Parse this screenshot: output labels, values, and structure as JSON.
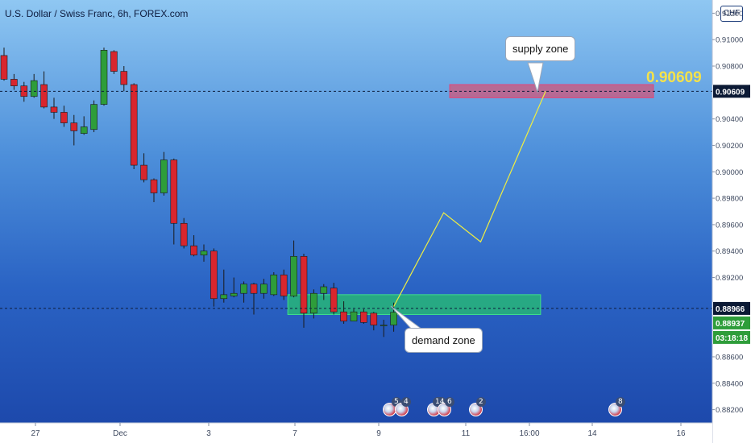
{
  "header": {
    "symbol_title": "U.S. Dollar / Swiss Franc, 6h, FOREX.com",
    "currency_label": "CHF"
  },
  "annotations": {
    "supply_label": "supply zone",
    "demand_label": "demand zone",
    "target_price": "0.90609"
  },
  "price_axis": {
    "ticks": [
      "0.91200",
      "0.91000",
      "0.90800",
      "0.90400",
      "0.90200",
      "0.90000",
      "0.89800",
      "0.89600",
      "0.89400",
      "0.89200",
      "0.88600",
      "0.88400",
      "0.88200"
    ],
    "target_tag": "0.90609",
    "current_tag": "0.88966",
    "last_tag": "0.88937",
    "countdown": "03:18:18"
  },
  "time_axis": {
    "labels": [
      "27",
      "Dec",
      "3",
      "7",
      "9",
      "11",
      "16:00",
      "14",
      "16"
    ]
  },
  "colors": {
    "up": "#2e9d3a",
    "down": "#d8262e",
    "supply_fill": "#d2557a",
    "demand_fill": "#27c26e",
    "projection": "#f0ee40",
    "axis_bg": "#ffffff"
  },
  "events": [
    {
      "count": "5"
    },
    {
      "count": "4"
    },
    {
      "count": "14"
    },
    {
      "count": "6"
    },
    {
      "count": "2"
    },
    {
      "count": "8"
    }
  ],
  "chart_data": {
    "type": "candlestick",
    "timeframe": "6h",
    "ylim": [
      0.881,
      0.913
    ],
    "candles": [
      {
        "t": 0,
        "o": 0.9088,
        "h": 0.9094,
        "l": 0.9069,
        "c": 0.907
      },
      {
        "t": 1,
        "o": 0.907,
        "h": 0.9074,
        "l": 0.9062,
        "c": 0.9065
      },
      {
        "t": 2,
        "o": 0.9065,
        "h": 0.9068,
        "l": 0.9053,
        "c": 0.9057
      },
      {
        "t": 3,
        "o": 0.9057,
        "h": 0.9074,
        "l": 0.9056,
        "c": 0.9069
      },
      {
        "t": 4,
        "o": 0.9066,
        "h": 0.9076,
        "l": 0.9048,
        "c": 0.9049
      },
      {
        "t": 5,
        "o": 0.9049,
        "h": 0.9056,
        "l": 0.904,
        "c": 0.9045
      },
      {
        "t": 6,
        "o": 0.9045,
        "h": 0.905,
        "l": 0.9034,
        "c": 0.9037
      },
      {
        "t": 7,
        "o": 0.9037,
        "h": 0.9043,
        "l": 0.902,
        "c": 0.9031
      },
      {
        "t": 8,
        "o": 0.9029,
        "h": 0.9042,
        "l": 0.9028,
        "c": 0.9034
      },
      {
        "t": 9,
        "o": 0.9032,
        "h": 0.9054,
        "l": 0.903,
        "c": 0.9051
      },
      {
        "t": 10,
        "o": 0.9051,
        "h": 0.9094,
        "l": 0.905,
        "c": 0.9092
      },
      {
        "t": 11,
        "o": 0.9091,
        "h": 0.9092,
        "l": 0.9074,
        "c": 0.9076
      },
      {
        "t": 12,
        "o": 0.9076,
        "h": 0.908,
        "l": 0.9061,
        "c": 0.9066
      },
      {
        "t": 13,
        "o": 0.9066,
        "h": 0.9067,
        "l": 0.9002,
        "c": 0.9005
      },
      {
        "t": 14,
        "o": 0.9005,
        "h": 0.9014,
        "l": 0.8992,
        "c": 0.8994
      },
      {
        "t": 15,
        "o": 0.8994,
        "h": 0.8995,
        "l": 0.8977,
        "c": 0.8984
      },
      {
        "t": 16,
        "o": 0.8984,
        "h": 0.9015,
        "l": 0.8982,
        "c": 0.9009
      },
      {
        "t": 17,
        "o": 0.9009,
        "h": 0.901,
        "l": 0.8945,
        "c": 0.8961
      },
      {
        "t": 18,
        "o": 0.8961,
        "h": 0.8965,
        "l": 0.8942,
        "c": 0.8944
      },
      {
        "t": 19,
        "o": 0.8944,
        "h": 0.8952,
        "l": 0.8936,
        "c": 0.8937
      },
      {
        "t": 20,
        "o": 0.8937,
        "h": 0.8945,
        "l": 0.8932,
        "c": 0.894
      },
      {
        "t": 21,
        "o": 0.894,
        "h": 0.8942,
        "l": 0.8898,
        "c": 0.8904
      },
      {
        "t": 22,
        "o": 0.8904,
        "h": 0.8926,
        "l": 0.8901,
        "c": 0.8907
      },
      {
        "t": 23,
        "o": 0.8906,
        "h": 0.892,
        "l": 0.8905,
        "c": 0.8908
      },
      {
        "t": 24,
        "o": 0.8908,
        "h": 0.8917,
        "l": 0.8901,
        "c": 0.8915
      },
      {
        "t": 25,
        "o": 0.8915,
        "h": 0.8916,
        "l": 0.8892,
        "c": 0.8908
      },
      {
        "t": 26,
        "o": 0.8908,
        "h": 0.8919,
        "l": 0.8904,
        "c": 0.8915
      },
      {
        "t": 27,
        "o": 0.8907,
        "h": 0.8924,
        "l": 0.8906,
        "c": 0.8922
      },
      {
        "t": 28,
        "o": 0.8922,
        "h": 0.8926,
        "l": 0.8903,
        "c": 0.8906
      },
      {
        "t": 29,
        "o": 0.8906,
        "h": 0.8948,
        "l": 0.8905,
        "c": 0.8936
      },
      {
        "t": 30,
        "o": 0.8936,
        "h": 0.8938,
        "l": 0.8882,
        "c": 0.8893
      },
      {
        "t": 31,
        "o": 0.8893,
        "h": 0.8911,
        "l": 0.8889,
        "c": 0.8908
      },
      {
        "t": 32,
        "o": 0.8908,
        "h": 0.8915,
        "l": 0.8903,
        "c": 0.8913
      },
      {
        "t": 33,
        "o": 0.8912,
        "h": 0.8916,
        "l": 0.8892,
        "c": 0.8894
      },
      {
        "t": 34,
        "o": 0.8894,
        "h": 0.8902,
        "l": 0.8885,
        "c": 0.8887
      },
      {
        "t": 35,
        "o": 0.8887,
        "h": 0.8896,
        "l": 0.8887,
        "c": 0.8894
      },
      {
        "t": 36,
        "o": 0.8894,
        "h": 0.8896,
        "l": 0.8885,
        "c": 0.8886
      },
      {
        "t": 37,
        "o": 0.8893,
        "h": 0.8894,
        "l": 0.888,
        "c": 0.8884
      },
      {
        "t": 38,
        "o": 0.8884,
        "h": 0.8888,
        "l": 0.8875,
        "c": 0.8884
      },
      {
        "t": 39,
        "o": 0.8884,
        "h": 0.8901,
        "l": 0.8879,
        "c": 0.88937
      }
    ],
    "supply_zone": {
      "top": 0.9066,
      "bottom": 0.9056,
      "x_from": 44.6,
      "x_to": 65.0
    },
    "demand_zone": {
      "top": 0.8907,
      "bottom": 0.8892,
      "x_from": 28.4,
      "x_to": 53.7
    },
    "projection_path": [
      {
        "x": 39.0,
        "y": 0.8898
      },
      {
        "x": 44.0,
        "y": 0.8969
      },
      {
        "x": 47.7,
        "y": 0.8947
      },
      {
        "x": 54.2,
        "y": 0.90609
      }
    ],
    "hlines": [
      0.90609,
      0.88966
    ]
  }
}
